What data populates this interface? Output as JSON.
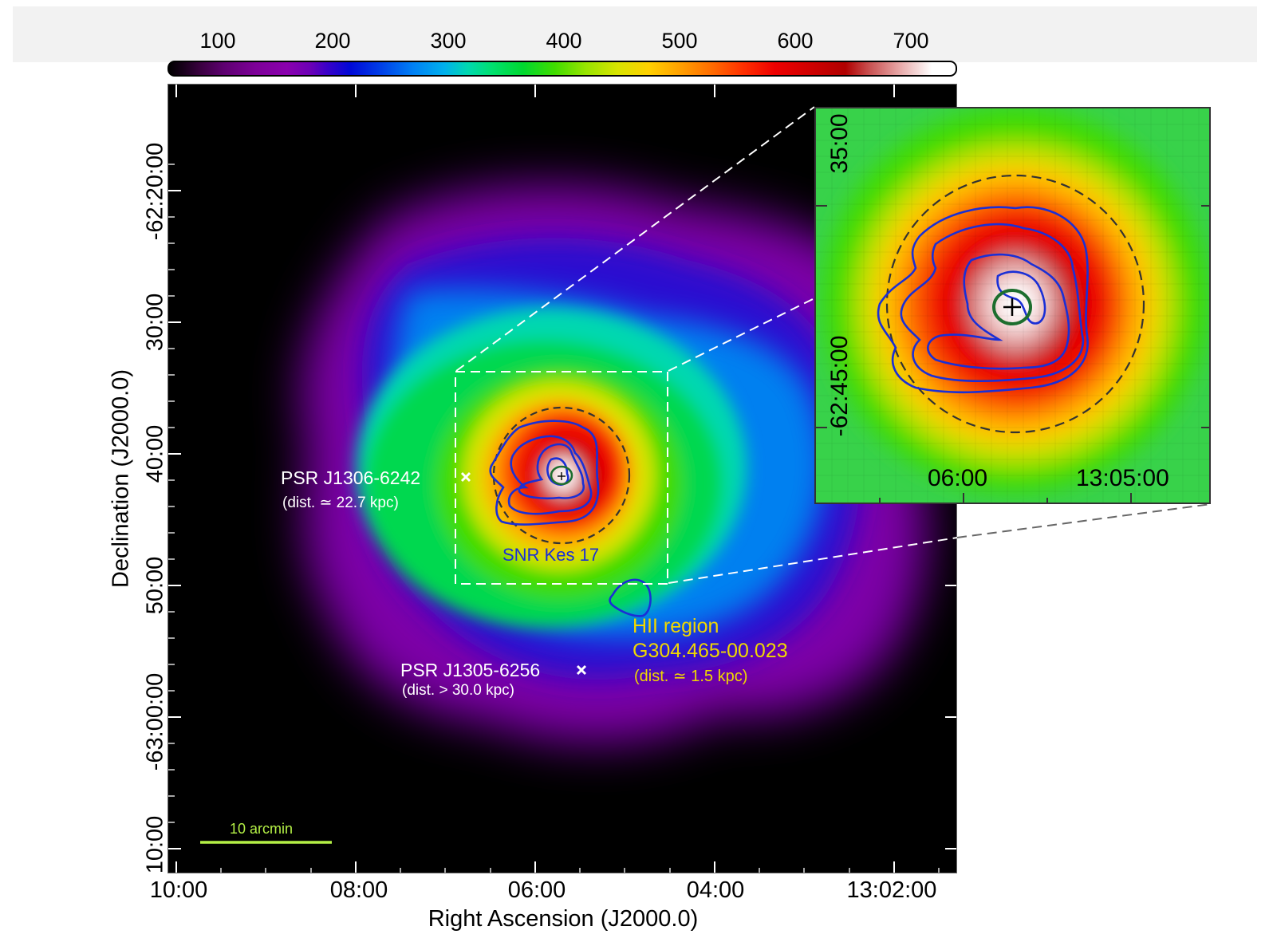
{
  "colorbar": {
    "ticks": [
      "100",
      "200",
      "300",
      "400",
      "500",
      "600",
      "700"
    ],
    "colormap": "rainbow-black-to-white"
  },
  "axes": {
    "xlabel": "Right Ascension (J2000.0)",
    "ylabel": "Declination (J2000.0)",
    "xticks": [
      "10:00",
      "08:00",
      "06:00",
      "04:00",
      "13:02:00"
    ],
    "yticks": [
      "-62:20:00",
      "30:00",
      "40:00",
      "50:00",
      "-63:00:00",
      "10:00"
    ]
  },
  "annotations": {
    "psr1_name": "PSR J1306-6242",
    "psr1_dist": "(dist. ≃ 22.7 kpc)",
    "psr2_name": "PSR J1305-6256",
    "psr2_dist": "(dist. > 30.0 kpc)",
    "snr": "SNR Kes 17",
    "hii_line1": "HII region",
    "hii_line2": "G304.465-00.023",
    "hii_dist": "(dist. ≃ 1.5 kpc)",
    "scalebar": "10 arcmin"
  },
  "inset": {
    "top_left_label": "35:00",
    "bottom_left_label": "-62:45:00",
    "xtick1": "06:00",
    "xtick2": "13:05:00"
  },
  "colors": {
    "contour": "#1a2fd6",
    "source_ellipse": "#1d6e2e",
    "scalebar": "#b4f046",
    "hii_text": "#f0d800",
    "snr_text": "#1a2fd6",
    "label_white": "#ffffff"
  }
}
